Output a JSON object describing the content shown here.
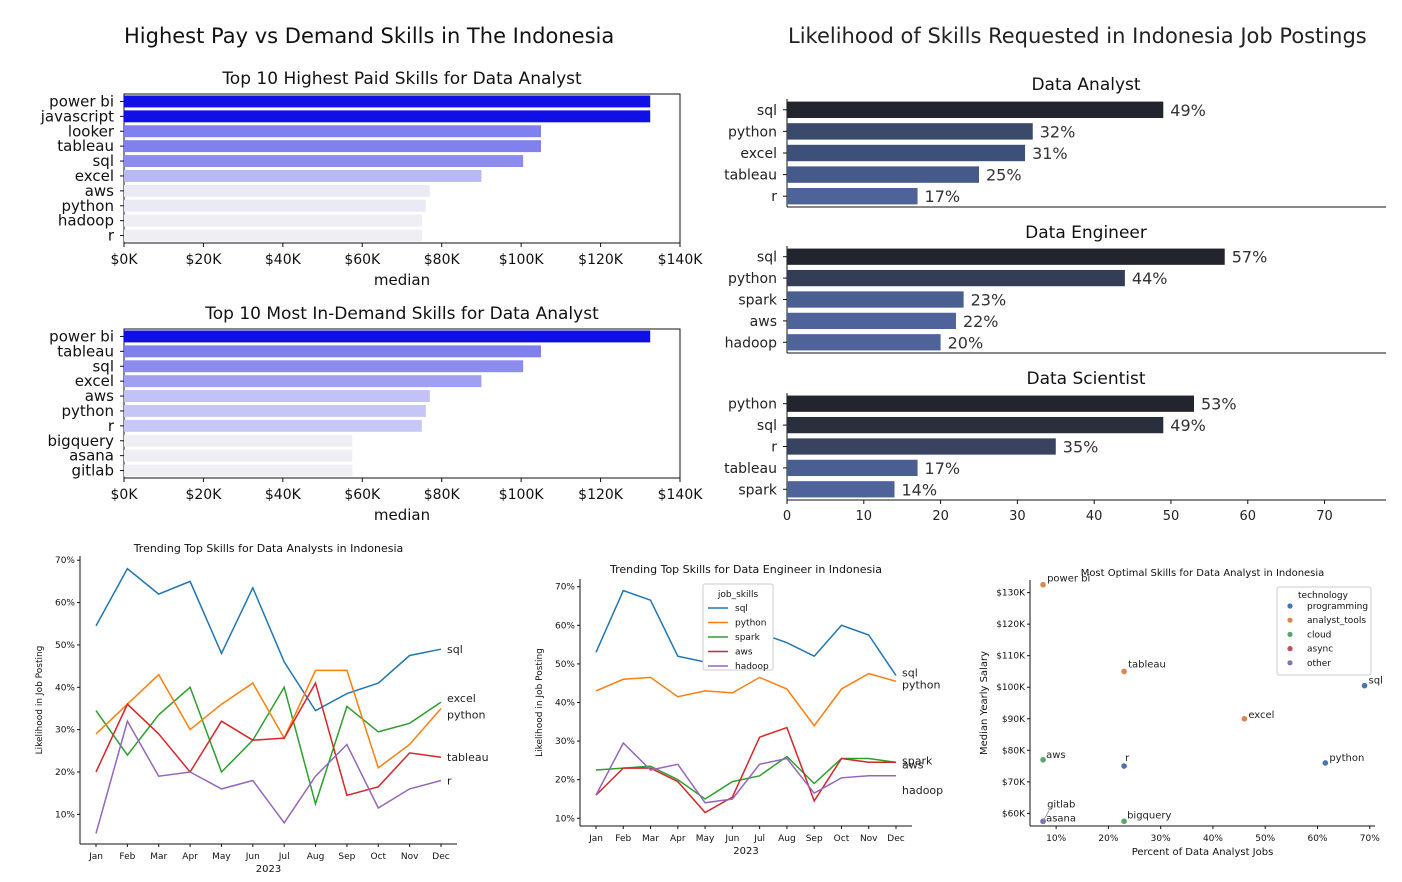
{
  "titles": {
    "left_super": "Highest Pay vs Demand Skills in The Indonesia",
    "right_super": "Likelihood of Skills Requested in Indonesia Job Postings"
  },
  "chart_data": [
    {
      "id": "paid",
      "type": "bar",
      "orientation": "horizontal",
      "title": "Top 10 Highest Paid Skills for Data Analyst",
      "xlabel": "median",
      "ylabel": "",
      "categories": [
        "power bi",
        "javascript",
        "looker",
        "tableau",
        "sql",
        "excel",
        "aws",
        "python",
        "hadoop",
        "r"
      ],
      "values": [
        132500,
        132500,
        105000,
        105000,
        100500,
        90000,
        77000,
        76000,
        75000,
        75000
      ],
      "xlim": [
        0,
        140000
      ],
      "xticks": [
        "$0K",
        "$20K",
        "$40K",
        "$60K",
        "$80K",
        "$100K",
        "$120K",
        "$140K"
      ],
      "colors": [
        "#1010e6",
        "#1010e6",
        "#8080ee",
        "#8080ee",
        "#8c8cf0",
        "#b8b8f5",
        "#eaeaf4",
        "#eaeaf4",
        "#eeeef4",
        "#eeeef4"
      ]
    },
    {
      "id": "demand",
      "type": "bar",
      "orientation": "horizontal",
      "title": "Top 10 Most In-Demand Skills for Data Analyst",
      "xlabel": "median",
      "ylabel": "",
      "categories": [
        "power bi",
        "tableau",
        "sql",
        "excel",
        "aws",
        "python",
        "r",
        "bigquery",
        "asana",
        "gitlab"
      ],
      "values": [
        132500,
        105000,
        100500,
        90000,
        77000,
        76000,
        75000,
        57500,
        57500,
        57500
      ],
      "xlim": [
        0,
        140000
      ],
      "xticks": [
        "$0K",
        "$20K",
        "$40K",
        "$60K",
        "$80K",
        "$100K",
        "$120K",
        "$140K"
      ],
      "colors": [
        "#1010e6",
        "#7f7fee",
        "#8c8cf0",
        "#a0a0f2",
        "#c2c2f6",
        "#c6c6f6",
        "#c8c8f6",
        "#eeeef4",
        "#eeeef4",
        "#eeeef4"
      ]
    },
    {
      "id": "da",
      "type": "bar",
      "orientation": "horizontal",
      "title": "Data Analyst",
      "categories": [
        "sql",
        "python",
        "excel",
        "tableau",
        "r"
      ],
      "values": [
        49,
        32,
        31,
        25,
        17
      ],
      "labels": [
        "49%",
        "32%",
        "31%",
        "25%",
        "17%"
      ],
      "xlim": [
        0,
        78
      ],
      "colors": [
        "#22252e",
        "#3a4a6a",
        "#3d507a",
        "#45598a",
        "#4d6399"
      ]
    },
    {
      "id": "de",
      "type": "bar",
      "orientation": "horizontal",
      "title": "Data Engineer",
      "categories": [
        "sql",
        "python",
        "spark",
        "aws",
        "hadoop"
      ],
      "values": [
        57,
        44,
        23,
        22,
        20
      ],
      "labels": [
        "57%",
        "44%",
        "23%",
        "22%",
        "20%"
      ],
      "xlim": [
        0,
        78
      ],
      "colors": [
        "#22252e",
        "#333d56",
        "#4a5e92",
        "#4d6399",
        "#4d6399"
      ]
    },
    {
      "id": "ds",
      "type": "bar",
      "orientation": "horizontal",
      "title": "Data Scientist",
      "categories": [
        "python",
        "sql",
        "r",
        "tableau",
        "spark"
      ],
      "values": [
        53,
        49,
        35,
        17,
        14
      ],
      "labels": [
        "53%",
        "49%",
        "35%",
        "17%",
        "14%"
      ],
      "xlim": [
        0,
        78
      ],
      "xticks": [
        "0",
        "10",
        "20",
        "30",
        "40",
        "50",
        "60",
        "70"
      ],
      "colors": [
        "#22252e",
        "#2a2f3d",
        "#38445f",
        "#4a5e92",
        "#4d6399"
      ]
    },
    {
      "id": "trend_da",
      "type": "line",
      "title": "Trending Top Skills for Data Analysts in Indonesia",
      "xlabel": "2023",
      "ylabel": "Likelihood in Job Posting",
      "categories": [
        "Jan",
        "Feb",
        "Mar",
        "Apr",
        "May",
        "Jun",
        "Jul",
        "Aug",
        "Sep",
        "Oct",
        "Nov",
        "Dec"
      ],
      "ylim": [
        3,
        71
      ],
      "yticks": [
        "10%",
        "20%",
        "30%",
        "40%",
        "50%",
        "60%",
        "70%"
      ],
      "series": [
        {
          "name": "sql",
          "color": "#1f77b4",
          "values": [
            54.5,
            68,
            62,
            65,
            48,
            63.5,
            46,
            34.5,
            38.5,
            41,
            47.5,
            49
          ]
        },
        {
          "name": "excel",
          "color": "#2ca02c",
          "values": [
            34.5,
            24,
            33.5,
            40,
            20,
            27.5,
            40,
            12.5,
            35.5,
            29.5,
            31.5,
            36.5
          ]
        },
        {
          "name": "python",
          "color": "#ff7f0e",
          "values": [
            29,
            36,
            43,
            30,
            36,
            41,
            28,
            44,
            44,
            21,
            26.5,
            35
          ]
        },
        {
          "name": "tableau",
          "color": "#d62728",
          "values": [
            20,
            36,
            29,
            20,
            32,
            27.5,
            28,
            41,
            14.5,
            16.5,
            24.5,
            23.5
          ]
        },
        {
          "name": "r",
          "color": "#9467bd",
          "values": [
            5.5,
            32,
            19,
            20,
            16,
            18,
            8,
            19,
            26.5,
            11.5,
            16,
            18
          ]
        }
      ],
      "end_labels": [
        "sql",
        "excel",
        "python",
        "tableau",
        "r"
      ]
    },
    {
      "id": "trend_de",
      "type": "line",
      "title": "Trending Top Skills for Data Engineer in Indonesia",
      "xlabel": "2023",
      "ylabel": "Likelihood in Job Posting",
      "categories": [
        "Jan",
        "Feb",
        "Mar",
        "Apr",
        "May",
        "Jun",
        "Jul",
        "Aug",
        "Sep",
        "Oct",
        "Nov",
        "Dec"
      ],
      "ylim": [
        8,
        72
      ],
      "yticks": [
        "10%",
        "20%",
        "30%",
        "40%",
        "50%",
        "60%",
        "70%"
      ],
      "legend_title": "job_skills",
      "legend_position": "upper-left",
      "series": [
        {
          "name": "sql",
          "color": "#1f77b4",
          "values": [
            53,
            69,
            66.5,
            52,
            50.5,
            63,
            58,
            55.5,
            52,
            60,
            57.5,
            47
          ]
        },
        {
          "name": "python",
          "color": "#ff7f0e",
          "values": [
            43,
            46,
            46.5,
            41.5,
            43,
            42.5,
            46.5,
            43.5,
            34,
            43.5,
            47.5,
            45.5
          ]
        },
        {
          "name": "spark",
          "color": "#2ca02c",
          "values": [
            22.5,
            23,
            23.5,
            20,
            15,
            19.5,
            21,
            26,
            19,
            25.5,
            25.5,
            24.5
          ]
        },
        {
          "name": "aws",
          "color": "#d62728",
          "values": [
            16,
            23,
            23,
            19.5,
            11.5,
            15.5,
            31,
            33.5,
            14.5,
            25.5,
            24.5,
            24.5
          ]
        },
        {
          "name": "hadoop",
          "color": "#9467bd",
          "values": [
            16,
            29.5,
            22.5,
            24,
            14,
            15,
            24,
            25.5,
            16.5,
            20.5,
            21,
            21
          ]
        }
      ],
      "end_labels": [
        "sql",
        "python",
        "spark",
        "aws",
        "hadoop"
      ]
    },
    {
      "id": "optimal",
      "type": "scatter",
      "title": "Most Optimal Skills for Data Analyst in Indonesia",
      "xlabel": "Percent of Data Analyst Jobs",
      "ylabel": "Median Yearly Salary",
      "xlim": [
        5,
        71
      ],
      "ylim": [
        56000,
        134000
      ],
      "xticks": [
        "10%",
        "20%",
        "30%",
        "40%",
        "50%",
        "60%",
        "70%"
      ],
      "yticks": [
        "$60K",
        "$70K",
        "$80K",
        "$90K",
        "$100K",
        "$110K",
        "$120K",
        "$130K"
      ],
      "legend_title": "technology",
      "legend_position": "top-right",
      "legend": [
        {
          "name": "programming",
          "color": "#4c72b0"
        },
        {
          "name": "analyst_tools",
          "color": "#dd8452"
        },
        {
          "name": "cloud",
          "color": "#55a868"
        },
        {
          "name": "async",
          "color": "#c44e52"
        },
        {
          "name": "other",
          "color": "#8172b3"
        }
      ],
      "points": [
        {
          "label": "power bi",
          "x": 7.5,
          "y": 132500,
          "tech": "analyst_tools"
        },
        {
          "label": "tableau",
          "x": 23,
          "y": 105000,
          "tech": "analyst_tools"
        },
        {
          "label": "sql",
          "x": 69,
          "y": 100500,
          "tech": "programming"
        },
        {
          "label": "excel",
          "x": 46,
          "y": 90000,
          "tech": "analyst_tools"
        },
        {
          "label": "aws",
          "x": 7.5,
          "y": 77000,
          "tech": "cloud"
        },
        {
          "label": "r",
          "x": 23,
          "y": 75000,
          "tech": "programming"
        },
        {
          "label": "python",
          "x": 61.5,
          "y": 76000,
          "tech": "programming"
        },
        {
          "label": "bigquery",
          "x": 23,
          "y": 57500,
          "tech": "cloud"
        },
        {
          "label": "gitlab",
          "x": 7.5,
          "y": 57500,
          "tech": "other"
        },
        {
          "label": "asana",
          "x": 7.5,
          "y": 57500,
          "tech": "other"
        }
      ]
    }
  ]
}
